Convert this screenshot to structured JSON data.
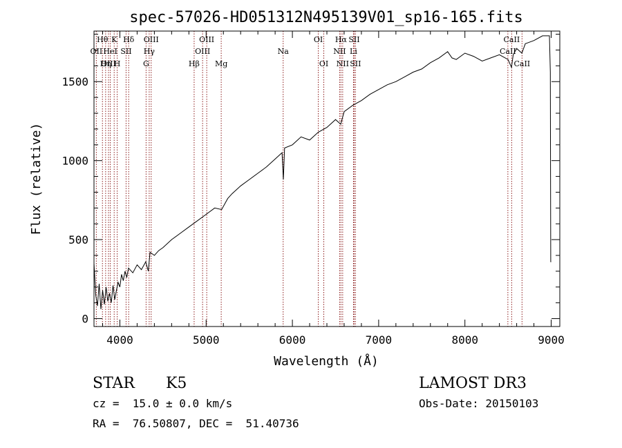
{
  "chart_data": {
    "type": "line",
    "title": "spec-57026-HD051312N495139V01_sp16-165.fits",
    "xlabel": "Wavelength (Å)",
    "ylabel": "Flux (relative)",
    "xlim": [
      3700,
      9100
    ],
    "ylim": [
      -50,
      1820
    ],
    "xticks": [
      4000,
      5000,
      6000,
      7000,
      8000,
      9000
    ],
    "yticks": [
      0,
      500,
      1000,
      1500
    ],
    "grid": false,
    "line_color": "#000000",
    "marker_color": "#8b1a1a",
    "series": [
      {
        "name": "flux",
        "points": [
          [
            3700,
            350
          ],
          [
            3720,
            150
          ],
          [
            3740,
            80
          ],
          [
            3760,
            220
          ],
          [
            3780,
            60
          ],
          [
            3800,
            180
          ],
          [
            3820,
            90
          ],
          [
            3840,
            200
          ],
          [
            3860,
            110
          ],
          [
            3880,
            160
          ],
          [
            3900,
            100
          ],
          [
            3920,
            210
          ],
          [
            3940,
            120
          ],
          [
            3960,
            180
          ],
          [
            3980,
            230
          ],
          [
            4000,
            200
          ],
          [
            4020,
            280
          ],
          [
            4040,
            240
          ],
          [
            4060,
            300
          ],
          [
            4080,
            260
          ],
          [
            4100,
            320
          ],
          [
            4150,
            290
          ],
          [
            4200,
            340
          ],
          [
            4250,
            310
          ],
          [
            4300,
            360
          ],
          [
            4330,
            300
          ],
          [
            4350,
            420
          ],
          [
            4400,
            400
          ],
          [
            4450,
            430
          ],
          [
            4500,
            450
          ],
          [
            4600,
            500
          ],
          [
            4700,
            540
          ],
          [
            4800,
            580
          ],
          [
            4900,
            620
          ],
          [
            5000,
            660
          ],
          [
            5100,
            700
          ],
          [
            5180,
            690
          ],
          [
            5250,
            760
          ],
          [
            5300,
            790
          ],
          [
            5400,
            840
          ],
          [
            5500,
            880
          ],
          [
            5600,
            920
          ],
          [
            5700,
            960
          ],
          [
            5800,
            1010
          ],
          [
            5880,
            1050
          ],
          [
            5895,
            880
          ],
          [
            5910,
            1080
          ],
          [
            6000,
            1100
          ],
          [
            6100,
            1150
          ],
          [
            6200,
            1130
          ],
          [
            6300,
            1180
          ],
          [
            6400,
            1210
          ],
          [
            6500,
            1260
          ],
          [
            6560,
            1230
          ],
          [
            6600,
            1310
          ],
          [
            6700,
            1350
          ],
          [
            6800,
            1380
          ],
          [
            6900,
            1420
          ],
          [
            7000,
            1450
          ],
          [
            7100,
            1480
          ],
          [
            7200,
            1500
          ],
          [
            7300,
            1530
          ],
          [
            7400,
            1560
          ],
          [
            7500,
            1580
          ],
          [
            7600,
            1620
          ],
          [
            7700,
            1650
          ],
          [
            7800,
            1690
          ],
          [
            7850,
            1650
          ],
          [
            7900,
            1640
          ],
          [
            8000,
            1680
          ],
          [
            8100,
            1660
          ],
          [
            8200,
            1630
          ],
          [
            8300,
            1650
          ],
          [
            8400,
            1670
          ],
          [
            8500,
            1640
          ],
          [
            8540,
            1590
          ],
          [
            8560,
            1670
          ],
          [
            8600,
            1710
          ],
          [
            8660,
            1680
          ],
          [
            8700,
            1740
          ],
          [
            8800,
            1760
          ],
          [
            8900,
            1790
          ],
          [
            8980,
            1790
          ],
          [
            8990,
            1560
          ],
          [
            8995,
            360
          ],
          [
            9000,
            360
          ]
        ]
      }
    ],
    "line_markers": [
      {
        "name": "Hθ",
        "wavelength": 3798,
        "row": 1
      },
      {
        "name": "OII",
        "wavelength": 3727,
        "row": 2
      },
      {
        "name": "OIII",
        "wavelength": 3868,
        "row": 3
      },
      {
        "name": "Hη",
        "wavelength": 3835,
        "row": 3
      },
      {
        "name": "HeI",
        "wavelength": 3889,
        "row": 2
      },
      {
        "name": "K",
        "wavelength": 3934,
        "row": 1
      },
      {
        "name": "H",
        "wavelength": 3969,
        "row": 3
      },
      {
        "name": "SII",
        "wavelength": 4072,
        "row": 2
      },
      {
        "name": "Hδ",
        "wavelength": 4102,
        "row": 1
      },
      {
        "name": "G",
        "wavelength": 4304,
        "row": 3
      },
      {
        "name": "Hγ",
        "wavelength": 4340,
        "row": 2
      },
      {
        "name": "OIII",
        "wavelength": 4363,
        "row": 1
      },
      {
        "name": "Hβ",
        "wavelength": 4861,
        "row": 3
      },
      {
        "name": "OIII",
        "wavelength": 4959,
        "row": 2
      },
      {
        "name": "OIII",
        "wavelength": 5007,
        "row": 1
      },
      {
        "name": "Mg",
        "wavelength": 5175,
        "row": 3
      },
      {
        "name": "Na",
        "wavelength": 5893,
        "row": 2
      },
      {
        "name": "OI",
        "wavelength": 6300,
        "row": 1
      },
      {
        "name": "OI",
        "wavelength": 6364,
        "row": 3
      },
      {
        "name": "NII",
        "wavelength": 6548,
        "row": 2
      },
      {
        "name": "Hα",
        "wavelength": 6563,
        "row": 1
      },
      {
        "name": "NII",
        "wavelength": 6583,
        "row": 3
      },
      {
        "name": "Li",
        "wavelength": 6708,
        "row": 2
      },
      {
        "name": "SII",
        "wavelength": 6716,
        "row": 1
      },
      {
        "name": "SII",
        "wavelength": 6731,
        "row": 3
      },
      {
        "name": "CaII",
        "wavelength": 8498,
        "row": 2
      },
      {
        "name": "CaII",
        "wavelength": 8542,
        "row": 1
      },
      {
        "name": "CaII",
        "wavelength": 8662,
        "row": 3
      }
    ]
  },
  "footer": {
    "object_type": "STAR",
    "subclass": "K5",
    "survey": "LAMOST DR3",
    "redshift": "cz =  15.0 ± 0.0 km/s",
    "obs_date": "Obs-Date: 20150103",
    "coords": "RA =  76.50807, DEC =  51.40736"
  }
}
